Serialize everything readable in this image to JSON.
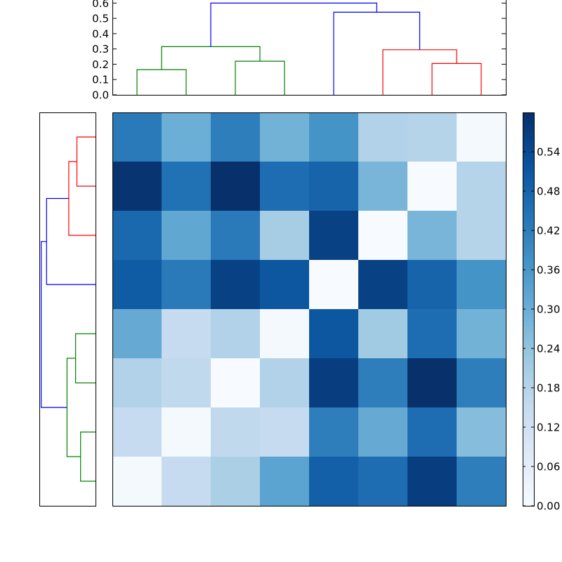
{
  "chart_data": [
    {
      "type": "heatmap",
      "colormap": "Blues",
      "colorbar": {
        "min": 0.0,
        "max": 0.6,
        "ticks": [
          0.0,
          0.06,
          0.12,
          0.18,
          0.24,
          0.3,
          0.36,
          0.42,
          0.48,
          0.54
        ],
        "tick_labels": [
          "0.00",
          "0.06",
          "0.12",
          "0.18",
          "0.24",
          "0.30",
          "0.36",
          "0.42",
          "0.48",
          "0.54"
        ]
      },
      "rows_top_to_bottom": [
        [
          0.43,
          0.3,
          0.42,
          0.29,
          0.37,
          0.19,
          0.18,
          0.01
        ],
        [
          0.59,
          0.45,
          0.6,
          0.46,
          0.48,
          0.28,
          0.0,
          0.18
        ],
        [
          0.47,
          0.32,
          0.43,
          0.21,
          0.56,
          0.0,
          0.28,
          0.18
        ],
        [
          0.5,
          0.43,
          0.56,
          0.51,
          0.0,
          0.56,
          0.48,
          0.37
        ],
        [
          0.31,
          0.15,
          0.19,
          0.01,
          0.51,
          0.22,
          0.46,
          0.29
        ],
        [
          0.19,
          0.16,
          0.0,
          0.19,
          0.57,
          0.42,
          0.6,
          0.42
        ],
        [
          0.15,
          0.01,
          0.16,
          0.15,
          0.42,
          0.31,
          0.46,
          0.26
        ],
        [
          0.01,
          0.15,
          0.2,
          0.33,
          0.49,
          0.46,
          0.57,
          0.42
        ]
      ]
    },
    {
      "type": "dendrogram",
      "orientation": "top",
      "ylim": [
        0,
        0.62
      ],
      "yticks": [
        0.0,
        0.1,
        0.2,
        0.3,
        0.4,
        0.5,
        0.6
      ],
      "ytick_labels": [
        "0.0",
        "0.1",
        "0.2",
        "0.3",
        "0.4",
        "0.5",
        "0.6"
      ],
      "links": [
        {
          "x": [
            0.5,
            0.5,
            1.5,
            1.5
          ],
          "h": [
            0.0,
            0.165,
            0.165,
            0.0
          ],
          "color": "#008000"
        },
        {
          "x": [
            2.5,
            2.5,
            3.5,
            3.5
          ],
          "h": [
            0.0,
            0.22,
            0.22,
            0.0
          ],
          "color": "#008000"
        },
        {
          "x": [
            1.0,
            1.0,
            3.0,
            3.0
          ],
          "h": [
            0.165,
            0.315,
            0.315,
            0.22
          ],
          "color": "#008000"
        },
        {
          "x": [
            6.5,
            6.5,
            7.5,
            7.5
          ],
          "h": [
            0.0,
            0.205,
            0.205,
            0.0
          ],
          "color": "#ff0000"
        },
        {
          "x": [
            5.5,
            5.5,
            7.0,
            7.0
          ],
          "h": [
            0.0,
            0.295,
            0.295,
            0.205
          ],
          "color": "#ff0000"
        },
        {
          "x": [
            4.5,
            4.5,
            6.25,
            6.25
          ],
          "h": [
            0.0,
            0.54,
            0.54,
            0.295
          ],
          "color": "#0000ff"
        },
        {
          "x": [
            2.0,
            2.0,
            5.375,
            5.375
          ],
          "h": [
            0.315,
            0.6,
            0.6,
            0.54
          ],
          "color": "#0000ff"
        }
      ]
    },
    {
      "type": "dendrogram",
      "orientation": "left",
      "xlim": [
        0,
        0.62
      ],
      "links": [
        {
          "y": [
            0.5,
            0.5,
            1.5,
            1.5
          ],
          "h": [
            0.0,
            0.165,
            0.165,
            0.0
          ],
          "color": "#008000"
        },
        {
          "y": [
            2.5,
            2.5,
            3.5,
            3.5
          ],
          "h": [
            0.0,
            0.22,
            0.22,
            0.0
          ],
          "color": "#008000"
        },
        {
          "y": [
            1.0,
            1.0,
            3.0,
            3.0
          ],
          "h": [
            0.165,
            0.315,
            0.315,
            0.22
          ],
          "color": "#008000"
        },
        {
          "y": [
            6.5,
            6.5,
            7.5,
            7.5
          ],
          "h": [
            0.0,
            0.205,
            0.205,
            0.0
          ],
          "color": "#ff0000"
        },
        {
          "y": [
            5.5,
            5.5,
            7.0,
            7.0
          ],
          "h": [
            0.0,
            0.295,
            0.295,
            0.205
          ],
          "color": "#ff0000"
        },
        {
          "y": [
            4.5,
            4.5,
            6.25,
            6.25
          ],
          "h": [
            0.0,
            0.54,
            0.54,
            0.295
          ],
          "color": "#0000ff"
        },
        {
          "y": [
            2.0,
            2.0,
            5.375,
            5.375
          ],
          "h": [
            0.315,
            0.6,
            0.6,
            0.54
          ],
          "color": "#0000ff"
        }
      ]
    }
  ]
}
